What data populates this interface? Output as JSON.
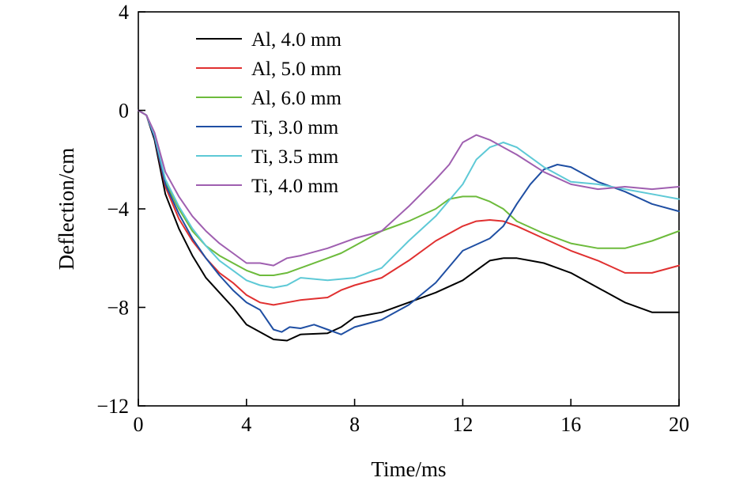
{
  "chart_data": {
    "type": "line",
    "title": "",
    "xlabel": "Time/ms",
    "ylabel": "Deflection/cm",
    "xlim": [
      0,
      20
    ],
    "ylim": [
      -12,
      4
    ],
    "xticks": [
      0,
      4,
      8,
      12,
      16,
      20
    ],
    "yticks": [
      -12,
      -8,
      -4,
      0,
      4
    ],
    "xtick_labels": [
      "0",
      "4",
      "8",
      "12",
      "16",
      "20"
    ],
    "ytick_labels": [
      "−12",
      "−8",
      "−4",
      "0",
      "4"
    ],
    "grid": false,
    "legend_position": "top-left",
    "series": [
      {
        "name": "Al, 4.0 mm",
        "color": "#000000",
        "points": [
          [
            0,
            0
          ],
          [
            0.3,
            -0.2
          ],
          [
            0.6,
            -1.2
          ],
          [
            1,
            -3.4
          ],
          [
            1.5,
            -4.8
          ],
          [
            2,
            -5.9
          ],
          [
            2.5,
            -6.8
          ],
          [
            3,
            -7.4
          ],
          [
            3.5,
            -8.0
          ],
          [
            4,
            -8.7
          ],
          [
            4.5,
            -9.0
          ],
          [
            5,
            -9.3
          ],
          [
            5.5,
            -9.35
          ],
          [
            6,
            -9.1
          ],
          [
            7,
            -9.05
          ],
          [
            7.5,
            -8.8
          ],
          [
            8,
            -8.4
          ],
          [
            9,
            -8.2
          ],
          [
            10,
            -7.8
          ],
          [
            11,
            -7.4
          ],
          [
            12,
            -6.9
          ],
          [
            12.5,
            -6.5
          ],
          [
            13,
            -6.1
          ],
          [
            13.5,
            -6.0
          ],
          [
            14,
            -6.0
          ],
          [
            14.5,
            -6.1
          ],
          [
            15,
            -6.2
          ],
          [
            15.5,
            -6.4
          ],
          [
            16,
            -6.6
          ],
          [
            17,
            -7.2
          ],
          [
            18,
            -7.8
          ],
          [
            19,
            -8.2
          ],
          [
            19.5,
            -8.2
          ],
          [
            20,
            -8.2
          ]
        ]
      },
      {
        "name": "Al, 5.0 mm",
        "color": "#e03030",
        "points": [
          [
            0,
            0
          ],
          [
            0.3,
            -0.2
          ],
          [
            0.6,
            -1.1
          ],
          [
            1,
            -3.1
          ],
          [
            1.5,
            -4.4
          ],
          [
            2,
            -5.3
          ],
          [
            2.5,
            -6.0
          ],
          [
            3,
            -6.6
          ],
          [
            3.5,
            -7.0
          ],
          [
            4,
            -7.5
          ],
          [
            4.5,
            -7.8
          ],
          [
            5,
            -7.9
          ],
          [
            5.5,
            -7.8
          ],
          [
            6,
            -7.7
          ],
          [
            7,
            -7.6
          ],
          [
            7.5,
            -7.3
          ],
          [
            8,
            -7.1
          ],
          [
            9,
            -6.8
          ],
          [
            10,
            -6.1
          ],
          [
            11,
            -5.3
          ],
          [
            12,
            -4.7
          ],
          [
            12.5,
            -4.5
          ],
          [
            13,
            -4.45
          ],
          [
            13.5,
            -4.5
          ],
          [
            14,
            -4.7
          ],
          [
            15,
            -5.2
          ],
          [
            16,
            -5.7
          ],
          [
            17,
            -6.1
          ],
          [
            18,
            -6.6
          ],
          [
            19,
            -6.6
          ],
          [
            20,
            -6.3
          ]
        ]
      },
      {
        "name": "Al, 6.0 mm",
        "color": "#6dbb3c",
        "points": [
          [
            0,
            0
          ],
          [
            0.3,
            -0.2
          ],
          [
            0.6,
            -1.0
          ],
          [
            1,
            -2.9
          ],
          [
            1.5,
            -4.0
          ],
          [
            2,
            -4.9
          ],
          [
            2.5,
            -5.5
          ],
          [
            3,
            -5.9
          ],
          [
            3.5,
            -6.2
          ],
          [
            4,
            -6.5
          ],
          [
            4.5,
            -6.7
          ],
          [
            5,
            -6.7
          ],
          [
            5.5,
            -6.6
          ],
          [
            6,
            -6.4
          ],
          [
            7,
            -6.0
          ],
          [
            7.5,
            -5.8
          ],
          [
            8,
            -5.5
          ],
          [
            9,
            -4.9
          ],
          [
            10,
            -4.5
          ],
          [
            11,
            -4.0
          ],
          [
            11.5,
            -3.6
          ],
          [
            12,
            -3.5
          ],
          [
            12.5,
            -3.5
          ],
          [
            13,
            -3.7
          ],
          [
            13.5,
            -4.0
          ],
          [
            14,
            -4.5
          ],
          [
            15,
            -5.0
          ],
          [
            16,
            -5.4
          ],
          [
            17,
            -5.6
          ],
          [
            18,
            -5.6
          ],
          [
            19,
            -5.3
          ],
          [
            20,
            -4.9
          ]
        ]
      },
      {
        "name": "Ti, 3.0 mm",
        "color": "#1f4fa3",
        "points": [
          [
            0,
            0
          ],
          [
            0.3,
            -0.2
          ],
          [
            0.6,
            -1.1
          ],
          [
            1,
            -3.0
          ],
          [
            1.5,
            -4.2
          ],
          [
            2,
            -5.2
          ],
          [
            2.5,
            -6.0
          ],
          [
            3,
            -6.7
          ],
          [
            3.5,
            -7.3
          ],
          [
            4,
            -7.8
          ],
          [
            4.5,
            -8.1
          ],
          [
            5,
            -8.9
          ],
          [
            5.3,
            -9.0
          ],
          [
            5.6,
            -8.8
          ],
          [
            6,
            -8.85
          ],
          [
            6.5,
            -8.7
          ],
          [
            7,
            -8.9
          ],
          [
            7.5,
            -9.1
          ],
          [
            8,
            -8.8
          ],
          [
            9,
            -8.5
          ],
          [
            10,
            -7.9
          ],
          [
            11,
            -7.0
          ],
          [
            12,
            -5.7
          ],
          [
            13,
            -5.2
          ],
          [
            13.5,
            -4.7
          ],
          [
            14,
            -3.8
          ],
          [
            14.5,
            -3.0
          ],
          [
            15,
            -2.4
          ],
          [
            15.5,
            -2.2
          ],
          [
            16,
            -2.3
          ],
          [
            17,
            -2.9
          ],
          [
            18,
            -3.3
          ],
          [
            19,
            -3.8
          ],
          [
            20,
            -4.1
          ]
        ]
      },
      {
        "name": "Ti, 3.5 mm",
        "color": "#5ec9d6",
        "points": [
          [
            0,
            0
          ],
          [
            0.3,
            -0.2
          ],
          [
            0.6,
            -1.0
          ],
          [
            1,
            -2.8
          ],
          [
            1.5,
            -3.9
          ],
          [
            2,
            -4.8
          ],
          [
            2.5,
            -5.5
          ],
          [
            3,
            -6.1
          ],
          [
            3.5,
            -6.5
          ],
          [
            4,
            -6.9
          ],
          [
            4.5,
            -7.1
          ],
          [
            5,
            -7.2
          ],
          [
            5.5,
            -7.1
          ],
          [
            6,
            -6.8
          ],
          [
            7,
            -6.9
          ],
          [
            8,
            -6.8
          ],
          [
            9,
            -6.4
          ],
          [
            10,
            -5.3
          ],
          [
            11,
            -4.3
          ],
          [
            12,
            -3.0
          ],
          [
            12.5,
            -2.0
          ],
          [
            13,
            -1.5
          ],
          [
            13.5,
            -1.3
          ],
          [
            14,
            -1.5
          ],
          [
            15,
            -2.3
          ],
          [
            16,
            -2.9
          ],
          [
            17,
            -3.0
          ],
          [
            18,
            -3.2
          ],
          [
            19,
            -3.4
          ],
          [
            20,
            -3.6
          ]
        ]
      },
      {
        "name": "Ti, 4.0 mm",
        "color": "#9f5fb0",
        "points": [
          [
            0,
            0
          ],
          [
            0.3,
            -0.2
          ],
          [
            0.6,
            -0.9
          ],
          [
            1,
            -2.5
          ],
          [
            1.5,
            -3.5
          ],
          [
            2,
            -4.3
          ],
          [
            2.5,
            -4.9
          ],
          [
            3,
            -5.4
          ],
          [
            3.5,
            -5.8
          ],
          [
            4,
            -6.2
          ],
          [
            4.5,
            -6.2
          ],
          [
            5,
            -6.3
          ],
          [
            5.5,
            -6.0
          ],
          [
            6,
            -5.9
          ],
          [
            7,
            -5.6
          ],
          [
            8,
            -5.2
          ],
          [
            9,
            -4.9
          ],
          [
            10,
            -3.9
          ],
          [
            11,
            -2.8
          ],
          [
            11.5,
            -2.2
          ],
          [
            12,
            -1.3
          ],
          [
            12.5,
            -1.0
          ],
          [
            13,
            -1.2
          ],
          [
            14,
            -1.8
          ],
          [
            15,
            -2.5
          ],
          [
            16,
            -3.0
          ],
          [
            17,
            -3.2
          ],
          [
            18,
            -3.1
          ],
          [
            19,
            -3.2
          ],
          [
            20,
            -3.1
          ]
        ]
      }
    ]
  }
}
